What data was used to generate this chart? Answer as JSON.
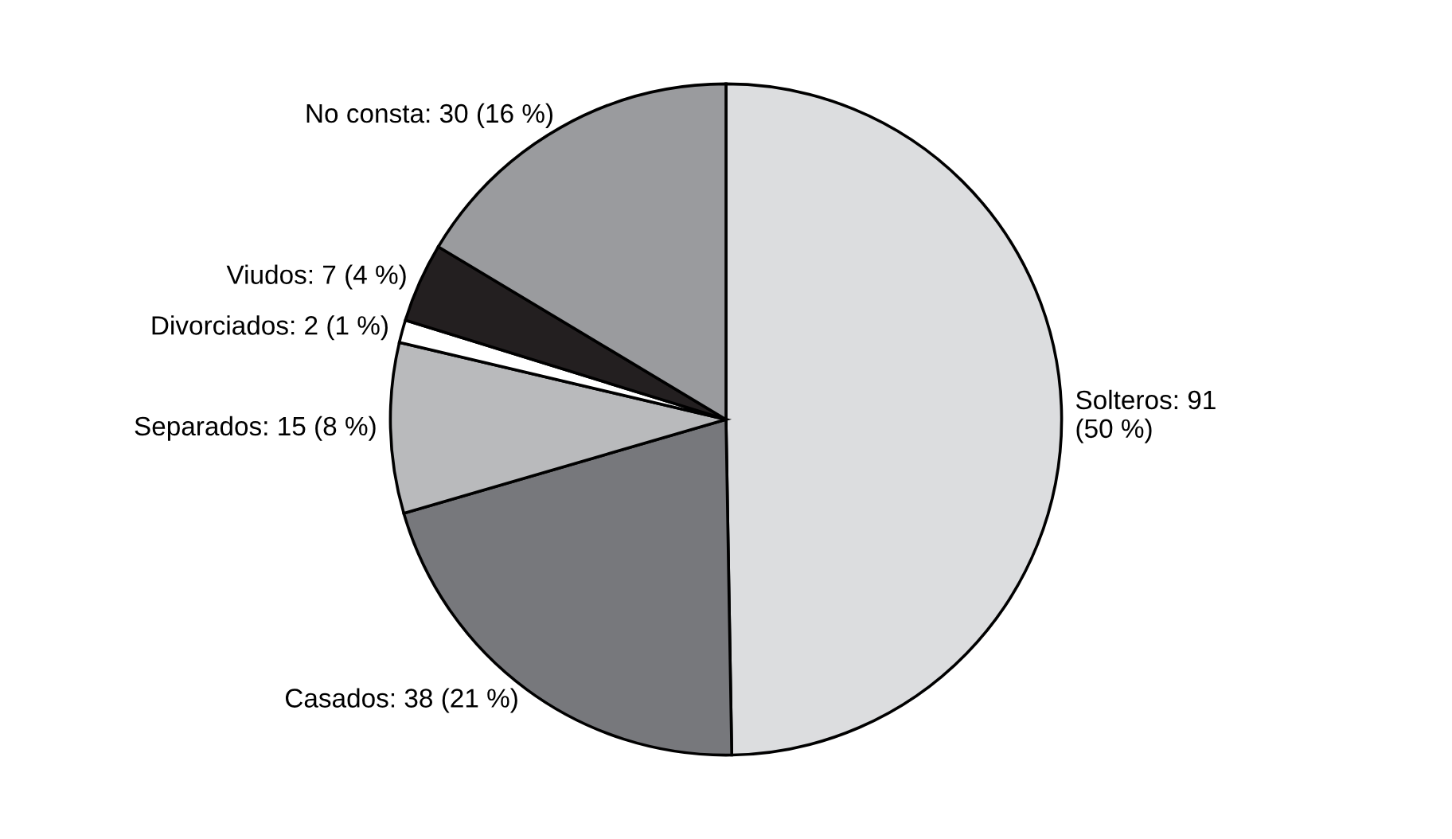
{
  "chart_data": {
    "type": "pie",
    "categories": [
      "Solteros",
      "Casados",
      "Separados",
      "Divorciados",
      "Viudos",
      "No consta"
    ],
    "values": [
      91,
      38,
      15,
      2,
      7,
      30
    ],
    "value_labels": [
      "91\n(50 %)",
      "38 (21 %)",
      "15 (8 %)",
      "2 (1 %)",
      "7 (4 %)",
      "30 (16 %)"
    ],
    "colors": [
      "#dcdddf",
      "#77787c",
      "#b9babc",
      "#ffffff",
      "#231f20",
      "#9a9b9e"
    ]
  }
}
